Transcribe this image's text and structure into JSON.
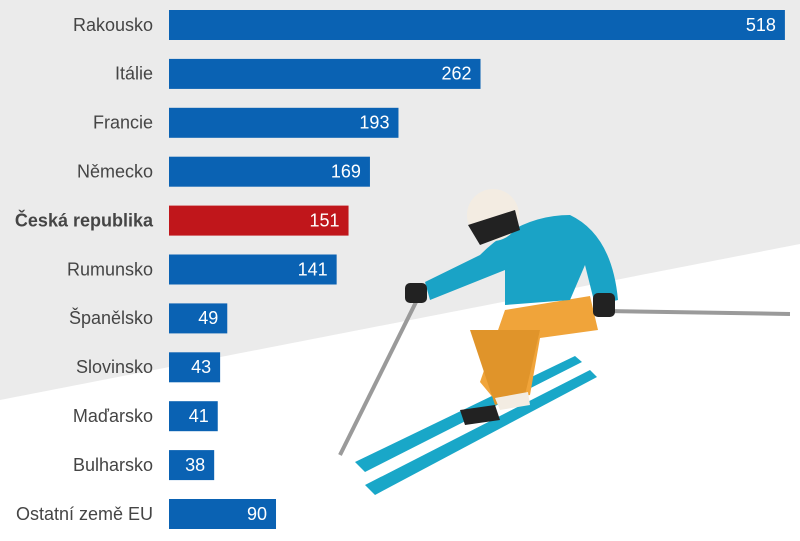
{
  "chart_data": {
    "type": "bar",
    "orientation": "horizontal",
    "categories": [
      "Rakousko",
      "Itálie",
      "Francie",
      "Německo",
      "Česká republika",
      "Rumunsko",
      "Španělsko",
      "Slovinsko",
      "Maďarsko",
      "Bulharsko",
      "Ostatní země EU"
    ],
    "values": [
      518,
      262,
      193,
      169,
      151,
      141,
      49,
      43,
      41,
      38,
      90
    ],
    "colors": [
      "#0a62b3",
      "#0a62b3",
      "#0a62b3",
      "#0a62b3",
      "#c0161b",
      "#0a62b3",
      "#0a62b3",
      "#0a62b3",
      "#0a62b3",
      "#0a62b3",
      "#0a62b3"
    ]
  }
}
